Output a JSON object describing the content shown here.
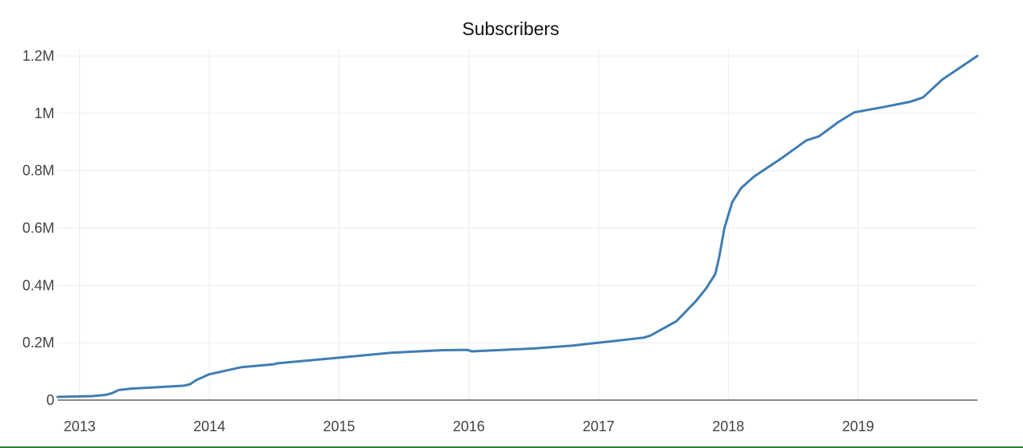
{
  "chart_data": {
    "type": "line",
    "title": "Subscribers",
    "xlabel": "",
    "ylabel": "",
    "xlim": [
      2012.83,
      2019.92
    ],
    "ylim": [
      0,
      1.2
    ],
    "x_ticks": [
      2013,
      2014,
      2015,
      2016,
      2017,
      2018,
      2019
    ],
    "x_tick_labels": [
      "2013",
      "2014",
      "2015",
      "2016",
      "2017",
      "2018",
      "2019"
    ],
    "y_ticks": [
      0,
      0.2,
      0.4,
      0.6,
      0.8,
      1.0,
      1.2
    ],
    "y_tick_labels": [
      "0",
      "0.2M",
      "0.4M",
      "0.6M",
      "0.8M",
      "1M",
      "1.2M"
    ],
    "y_unit": "millions",
    "grid": true,
    "legend": "none",
    "color": "#3f7db4",
    "series": [
      {
        "x": [
          2012.83,
          2013.1,
          2013.2,
          2013.25,
          2013.3,
          2013.4,
          2013.6,
          2013.8,
          2013.85,
          2013.9,
          2014.0,
          2014.25,
          2014.5,
          2014.52,
          2015.0,
          2015.4,
          2015.8,
          2015.99,
          2016.02,
          2016.5,
          2016.8,
          2017.0,
          2017.2,
          2017.35,
          2017.4,
          2017.6,
          2017.75,
          2017.83,
          2017.9,
          2017.93,
          2017.97,
          2018.03,
          2018.1,
          2018.2,
          2018.4,
          2018.6,
          2018.7,
          2018.85,
          2018.97,
          2019.2,
          2019.4,
          2019.5,
          2019.65,
          2019.92
        ],
        "y": [
          0.011,
          0.014,
          0.018,
          0.024,
          0.035,
          0.04,
          0.045,
          0.05,
          0.055,
          0.07,
          0.09,
          0.115,
          0.125,
          0.128,
          0.148,
          0.165,
          0.174,
          0.175,
          0.17,
          0.18,
          0.19,
          0.2,
          0.21,
          0.218,
          0.225,
          0.275,
          0.345,
          0.39,
          0.44,
          0.5,
          0.6,
          0.69,
          0.74,
          0.78,
          0.84,
          0.905,
          0.92,
          0.97,
          1.003,
          1.022,
          1.04,
          1.055,
          1.118,
          1.2
        ]
      }
    ]
  }
}
